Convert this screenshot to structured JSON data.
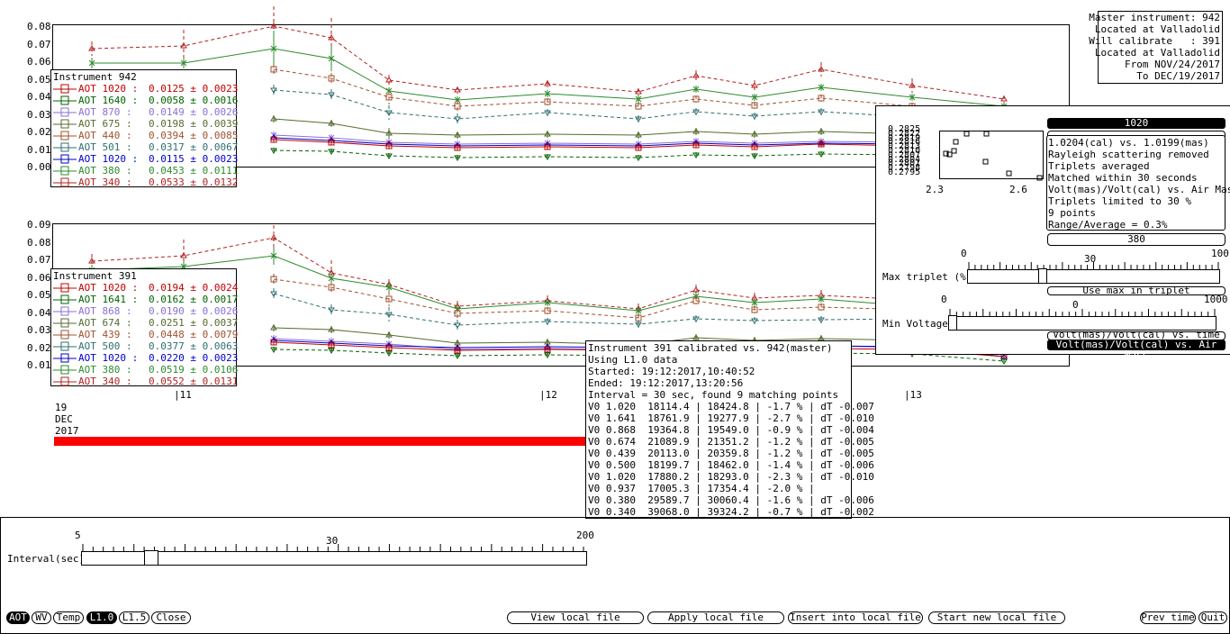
{
  "plot1": {
    "yticks": [
      "0.08",
      "0.07",
      "0.06",
      "0.05",
      "0.04",
      "0.03",
      "0.02",
      "0.01",
      "0.00"
    ],
    "legend_title": "Instrument 942",
    "legend": [
      {
        "label": "AOT 1020 :",
        "value": "0.0125 ± 0.0023",
        "color": "#c00000"
      },
      {
        "label": "AOT 1640 :",
        "value": "0.0058 ± 0.0016",
        "color": "#006400"
      },
      {
        "label": "AOT 870 :",
        "value": "0.0149 ± 0.0026",
        "color": "#8a6fd8"
      },
      {
        "label": "AOT 675 :",
        "value": "0.0198 ± 0.0039",
        "color": "#556b2f"
      },
      {
        "label": "AOT 440 :",
        "value": "0.0394 ± 0.0085",
        "color": "#a0522d"
      },
      {
        "label": "AOT 501 :",
        "value": "0.0317 ± 0.0067",
        "color": "#2f6f6f"
      },
      {
        "label": "AOT 1020 :",
        "value": "0.0115 ± 0.0023",
        "color": "#0000cc"
      },
      {
        "label": "AOT 380 :",
        "value": "0.0453 ± 0.0111",
        "color": "#2e8b2e"
      },
      {
        "label": "AOT 340 :",
        "value": "0.0533 ± 0.0132",
        "color": "#b22222"
      }
    ]
  },
  "plot2": {
    "yticks": [
      "0.09",
      "0.08",
      "0.07",
      "0.06",
      "0.05",
      "0.04",
      "0.03",
      "0.02",
      "0.01"
    ],
    "legend_title": "Instrument 391",
    "legend": [
      {
        "label": "AOT 1020 :",
        "value": "0.0194 ± 0.0024",
        "color": "#c00000"
      },
      {
        "label": "AOT 1641 :",
        "value": "0.0162 ± 0.0017",
        "color": "#006400"
      },
      {
        "label": "AOT 868 :",
        "value": "0.0190 ± 0.0026",
        "color": "#8a6fd8"
      },
      {
        "label": "AOT 674 :",
        "value": "0.0251 ± 0.0037",
        "color": "#556b2f"
      },
      {
        "label": "AOT 439 :",
        "value": "0.0448 ± 0.0079",
        "color": "#a0522d"
      },
      {
        "label": "AOT 500 :",
        "value": "0.0377 ± 0.0063",
        "color": "#2f6f6f"
      },
      {
        "label": "AOT 1020 :",
        "value": "0.0220 ± 0.0023",
        "color": "#0000cc"
      },
      {
        "label": "AOT 380 :",
        "value": "0.0519 ± 0.0106",
        "color": "#2e8b2e"
      },
      {
        "label": "AOT 340 :",
        "value": "0.0552 ± 0.0131",
        "color": "#b22222"
      }
    ]
  },
  "xaxis": {
    "ticks": [
      "11",
      "12",
      "13"
    ],
    "day": "19",
    "month": "DEC",
    "year": "2017"
  },
  "master_box": [
    "Master instrument: 942",
    "Located at Valladolid",
    "Will calibrate   : 391",
    "Located at Valladolid",
    "From NOV/24/2017",
    "To DEC/19/2017"
  ],
  "calib_panel": {
    "header": "1020",
    "scatter_yticks": [
      "0.2825",
      "0.2822",
      "0.2819",
      "0.2816",
      "0.2813",
      "0.2810",
      "0.2807",
      "0.2804",
      "0.2801",
      "0.2798",
      "0.2795"
    ],
    "scatter_xticks": [
      "2.3",
      "2.6"
    ],
    "info_lines": [
      "1.0204(cal) vs. 1.0199(mas)",
      "Rayleigh scattering removed",
      "Triplets averaged",
      "Matched within 30 seconds",
      "Volt(mas)/Volt(cal) vs. Air Mass",
      "Triplets limited to 30 %",
      "9 points",
      "Range/Average = 0.3%"
    ],
    "bar_380": "380",
    "max_triplet": {
      "label": "Max triplet (%)",
      "min": "0",
      "mid": "30",
      "max": "100",
      "value": 30
    },
    "min_voltage": {
      "label": "Min Voltage",
      "min": "0",
      "mid": "0",
      "max": "1000",
      "value": 0
    },
    "hidden1": "Use max in triplet",
    "hidden2": "Volt(mas)/Volt(cal) vs. time",
    "mode_button": "Volt(mas)/Volt(cal) vs. Air Mass"
  },
  "summary": {
    "lines": [
      "Instrument 391 calibrated vs. 942(master)",
      "Using L1.0 data",
      "Started: 19:12:2017,10:40:52",
      "Ended: 19:12:2017,13:20:56",
      "Interval = 30 sec, found 9 matching points",
      "V0 1.020  18114.4 | 18424.8 | -1.7 % | dT -0.007",
      "V0 1.641  18761.9 | 19277.9 | -2.7 % | dT -0.010",
      "V0 0.868  19364.8 | 19549.0 | -0.9 % | dT -0.004",
      "V0 0.674  21089.9 | 21351.2 | -1.2 % | dT -0.005",
      "V0 0.439  20113.0 | 20359.8 | -1.2 % | dT -0.005",
      "V0 0.500  18199.7 | 18462.0 | -1.4 % | dT -0.006",
      "V0 1.020  17880.2 | 18293.0 | -2.3 % | dT -0.010",
      "V0 0.937  17005.3 | 17354.4 | -2.0 % |",
      "V0 0.380  29589.7 | 30060.4 | -1.6 % | dT -0.006",
      "V0 0.340  39068.0 | 39324.2 | -0.7 % | dT -0.002"
    ]
  },
  "interval": {
    "label": "Interval(sec)",
    "min": "5",
    "mid": "30",
    "max": "200",
    "value": 30
  },
  "bottom_buttons": {
    "aot": "AOT",
    "wv": "WV",
    "temp": "Temp",
    "l10": "L1.0",
    "l15": "L1.5",
    "close": "Close",
    "view": "View local file",
    "apply": "Apply local file",
    "insert": "Insert into local file",
    "start": "Start new local file",
    "prev": "Prev time",
    "quit": "Quit"
  },
  "colors": {
    "red_bar": "#ff0000"
  }
}
